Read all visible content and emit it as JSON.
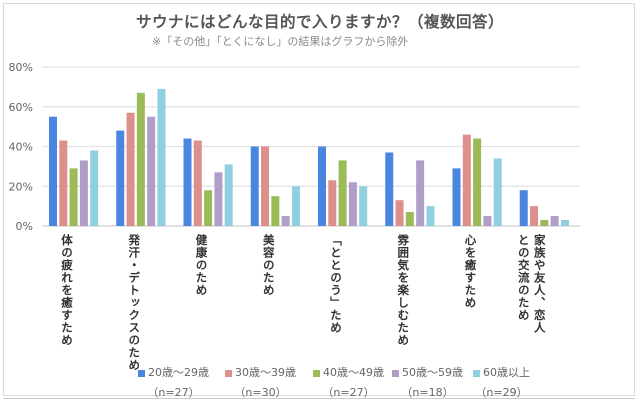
{
  "chart_data": {
    "type": "bar",
    "title": "サウナにはどんな目的で入りますか？（複数回答）",
    "subtitle": "※「その他」「とくになし」の結果はグラフから除外",
    "categories": [
      "体の疲れを癒すため",
      "発汗・デトックスのため",
      "健康のため",
      "美容のため",
      "「ととのう」ため",
      "雰囲気を楽しむため",
      "心を癒すため",
      "家族や友人、恋人\nとの交流のため"
    ],
    "series": [
      {
        "name": "20歳～29歳",
        "n": "（n=27）",
        "color": "#4a86e0",
        "values": [
          55,
          48,
          44,
          40,
          40,
          37,
          29,
          18
        ]
      },
      {
        "name": "30歳～39歳",
        "n": "（n=30）",
        "color": "#dc8f8b",
        "values": [
          43,
          57,
          43,
          40,
          23,
          13,
          46,
          10
        ]
      },
      {
        "name": "40歳～49歳",
        "n": "（n=27）",
        "color": "#9bbb59",
        "values": [
          29,
          67,
          18,
          15,
          33,
          7,
          44,
          3
        ]
      },
      {
        "name": "50歳～59歳",
        "n": "（n=18）",
        "color": "#b09dc8",
        "values": [
          33,
          55,
          27,
          5,
          22,
          33,
          5,
          5
        ]
      },
      {
        "name": "60歳以上",
        "n": "（n=29）",
        "color": "#8fcfe0",
        "values": [
          38,
          69,
          31,
          20,
          20,
          10,
          34,
          3
        ]
      }
    ],
    "yticks": [
      "0%",
      "20%",
      "40%",
      "60%",
      "80%"
    ],
    "ylim": [
      0,
      80
    ],
    "grid": true,
    "legend": "bottom"
  }
}
